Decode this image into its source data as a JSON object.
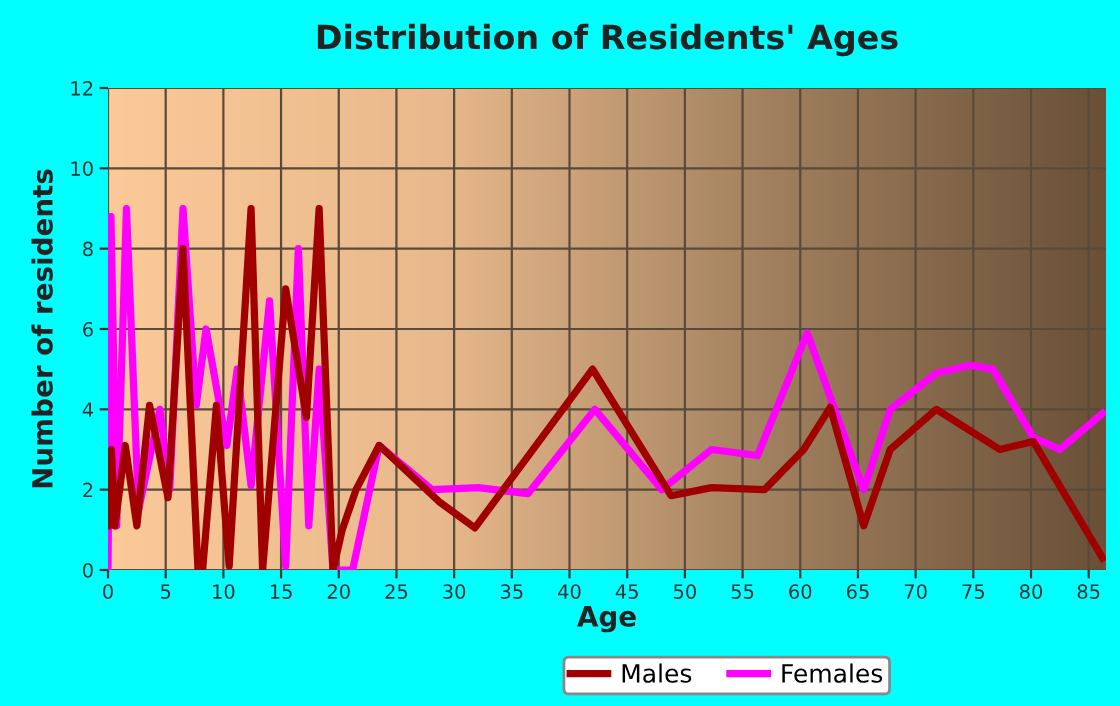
{
  "chart_data": {
    "type": "line",
    "title": "Distribution of Residents' Ages",
    "xlabel": "Age",
    "ylabel": "Number of residents",
    "xlim": [
      0,
      86.5
    ],
    "ylim": [
      0,
      12
    ],
    "xticks": [
      0,
      5,
      10,
      15,
      20,
      25,
      30,
      35,
      40,
      45,
      50,
      55,
      60,
      65,
      70,
      75,
      80,
      85
    ],
    "yticks": [
      0,
      2,
      4,
      6,
      8,
      10,
      12
    ],
    "grid": true,
    "legend": "bottom",
    "series": [
      {
        "name": "Males",
        "color": "#a00000",
        "x": [
          0,
          0.3,
          0.6,
          1.5,
          2.5,
          3.6,
          5.2,
          6.5,
          7.8,
          8.2,
          9.4,
          10.5,
          12.4,
          13.4,
          15.4,
          17.2,
          18.3,
          19.5,
          20.3,
          21.5,
          23.5,
          28.7,
          31.8,
          42,
          48.8,
          52.3,
          56.9,
          60.3,
          62.6,
          65.5,
          67.8,
          71.8,
          77.3,
          80.2,
          86.2
        ],
        "values": [
          1.1,
          3,
          1.1,
          3.1,
          1.1,
          4.1,
          1.8,
          8,
          0,
          0,
          4.1,
          0.1,
          9,
          0,
          7,
          3.8,
          9,
          0,
          1,
          2,
          3.1,
          1.7,
          1.05,
          5,
          1.85,
          2.05,
          2,
          3,
          4.05,
          1.1,
          3,
          4,
          3,
          3.2,
          0.3
        ]
      },
      {
        "name": "Females",
        "color": "#ff00ff",
        "x": [
          0,
          0.26,
          0.75,
          1.6,
          2.65,
          4.5,
          5.35,
          6.5,
          7.65,
          8.5,
          10.3,
          11.2,
          12.4,
          14,
          15.4,
          16.5,
          17.4,
          18.3,
          19.5,
          21.2,
          23.5,
          28.1,
          32.1,
          36.4,
          42.2,
          48,
          52.3,
          56.3,
          60.6,
          65.5,
          67.8,
          71.8,
          74.7,
          76.7,
          80.2,
          82.5,
          86.2
        ],
        "values": [
          0,
          8.8,
          1.1,
          9,
          1.5,
          4,
          2,
          9,
          4.1,
          6,
          3.1,
          5,
          2.1,
          6.7,
          0.1,
          8,
          1.1,
          5,
          0,
          0,
          3.1,
          2,
          2.05,
          1.9,
          4,
          2,
          3,
          2.85,
          5.9,
          2,
          4,
          4.9,
          5.1,
          5,
          3.3,
          3,
          3.9
        ]
      }
    ]
  }
}
